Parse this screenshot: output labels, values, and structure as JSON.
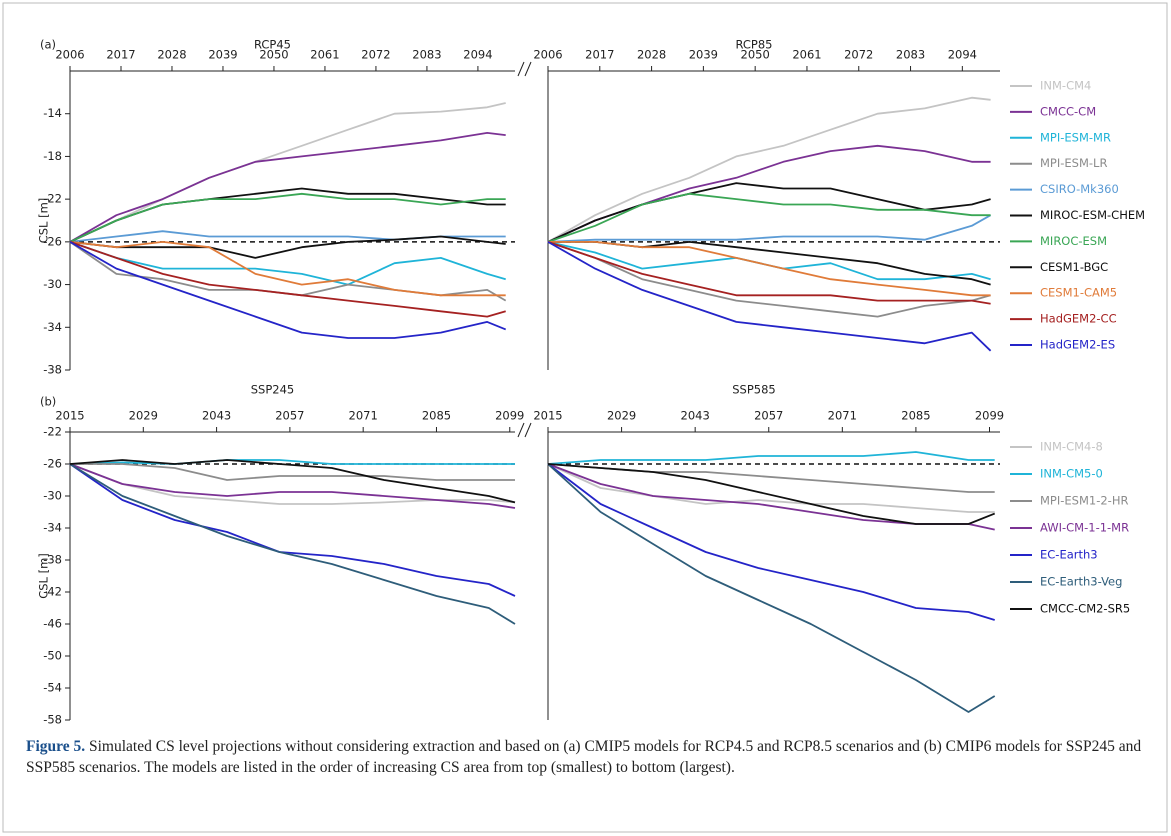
{
  "chart_data": [
    {
      "type": "line",
      "panel_label": "(a)",
      "title": "RCP45",
      "ylabel": "CSL [m]",
      "x": [
        2006,
        2016,
        2026,
        2036,
        2046,
        2056,
        2066,
        2076,
        2086,
        2096,
        2100
      ],
      "xlim": [
        2006,
        2102
      ],
      "xticks": [
        2006,
        2017,
        2028,
        2039,
        2050,
        2061,
        2072,
        2083,
        2094
      ],
      "ylim": [
        -38,
        -10
      ],
      "yticks": [
        -38,
        -34,
        -30,
        -26,
        -22,
        -18,
        -14
      ],
      "hline": -26,
      "series": [
        {
          "name": "INM-CM4",
          "color": "#c4c4c4",
          "values": [
            -26,
            -24,
            -22,
            -20,
            -18.5,
            -17,
            -15.5,
            -14,
            -13.8,
            -13.4,
            -13
          ]
        },
        {
          "name": "CMCC-CM",
          "color": "#7b3294",
          "values": [
            -26,
            -23.5,
            -22,
            -20,
            -18.5,
            -18,
            -17.5,
            -17,
            -16.5,
            -15.8,
            -16
          ]
        },
        {
          "name": "MPI-ESM-MR",
          "color": "#1fb4d8",
          "values": [
            -26,
            -27.5,
            -28.5,
            -28.5,
            -28.5,
            -29,
            -30,
            -28,
            -27.5,
            -29,
            -29.5
          ]
        },
        {
          "name": "MPI-ESM-LR",
          "color": "#8c8c8c",
          "values": [
            -26,
            -29,
            -29.5,
            -30.5,
            -30.5,
            -31,
            -30,
            -30.5,
            -31,
            -30.5,
            -31.5
          ]
        },
        {
          "name": "CSIRO-Mk360",
          "color": "#5b9bd5",
          "values": [
            -26,
            -25.5,
            -25,
            -25.5,
            -25.5,
            -25.5,
            -25.5,
            -25.8,
            -25.5,
            -25.5,
            -25.5
          ]
        },
        {
          "name": "MIROC-ESM-CHEM",
          "color": "#111111",
          "values": [
            -26,
            -24,
            -22.5,
            -22,
            -21.5,
            -21,
            -21.5,
            -21.5,
            -22,
            -22.5,
            -22.5
          ]
        },
        {
          "name": "MIROC-ESM",
          "color": "#3aa655",
          "values": [
            -26,
            -24,
            -22.5,
            -22,
            -22,
            -21.5,
            -22,
            -22,
            -22.5,
            -22,
            -22
          ]
        },
        {
          "name": "CESM1-BGC",
          "color": "#111111",
          "values": [
            -26,
            -26.5,
            -26.5,
            -26.5,
            -27.5,
            -26.5,
            -26,
            -25.8,
            -25.5,
            -26,
            -26.2
          ]
        },
        {
          "name": "CESM1-CAM5",
          "color": "#e07b39",
          "values": [
            -26,
            -26.5,
            -26,
            -26.5,
            -29,
            -30,
            -29.5,
            -30.5,
            -31,
            -31,
            -31
          ]
        },
        {
          "name": "HadGEM2-CC",
          "color": "#a52121",
          "values": [
            -26,
            -27.5,
            -29,
            -30,
            -30.5,
            -31,
            -31.5,
            -32,
            -32.5,
            -33,
            -32.5
          ]
        },
        {
          "name": "HadGEM2-ES",
          "color": "#2424c8",
          "values": [
            -26,
            -28.5,
            -30,
            -31.5,
            -33,
            -34.5,
            -35,
            -35,
            -34.5,
            -33.5,
            -34.2
          ]
        }
      ]
    },
    {
      "type": "line",
      "title": "RCP85",
      "legend": "right",
      "x": [
        2006,
        2016,
        2026,
        2036,
        2046,
        2056,
        2066,
        2076,
        2086,
        2096,
        2100
      ],
      "xlim": [
        2006,
        2102
      ],
      "xticks": [
        2006,
        2017,
        2028,
        2039,
        2050,
        2061,
        2072,
        2083,
        2094
      ],
      "ylim": [
        -38,
        -10
      ],
      "hline": -26,
      "series": [
        {
          "name": "INM-CM4",
          "color": "#c4c4c4",
          "values": [
            -26,
            -23.5,
            -21.5,
            -20,
            -18,
            -17,
            -15.5,
            -14,
            -13.5,
            -12.5,
            -12.7
          ]
        },
        {
          "name": "CMCC-CM",
          "color": "#7b3294",
          "values": [
            -26,
            -24,
            -22.5,
            -21,
            -20,
            -18.5,
            -17.5,
            -17,
            -17.5,
            -18.5,
            -18.5
          ]
        },
        {
          "name": "MPI-ESM-MR",
          "color": "#1fb4d8",
          "values": [
            -26,
            -27,
            -28.5,
            -28,
            -27.5,
            -28.5,
            -28,
            -29.5,
            -29.5,
            -29,
            -29.5
          ]
        },
        {
          "name": "MPI-ESM-LR",
          "color": "#8c8c8c",
          "values": [
            -26,
            -27.5,
            -29.5,
            -30.5,
            -31.5,
            -32,
            -32.5,
            -33,
            -32,
            -31.5,
            -31
          ]
        },
        {
          "name": "CSIRO-Mk360",
          "color": "#5b9bd5",
          "values": [
            -26,
            -25.8,
            -25.8,
            -25.8,
            -25.8,
            -25.5,
            -25.5,
            -25.5,
            -25.8,
            -24.5,
            -23.5
          ]
        },
        {
          "name": "MIROC-ESM-CHEM",
          "color": "#111111",
          "values": [
            -26,
            -24,
            -22.5,
            -21.5,
            -20.5,
            -21,
            -21,
            -22,
            -23,
            -22.5,
            -22
          ]
        },
        {
          "name": "MIROC-ESM",
          "color": "#3aa655",
          "values": [
            -26,
            -24.5,
            -22.5,
            -21.5,
            -22,
            -22.5,
            -22.5,
            -23,
            -23,
            -23.5,
            -23.5
          ]
        },
        {
          "name": "CESM1-BGC",
          "color": "#111111",
          "values": [
            -26,
            -26,
            -26.5,
            -26,
            -26.5,
            -27,
            -27.5,
            -28,
            -29,
            -29.5,
            -30
          ]
        },
        {
          "name": "CESM1-CAM5",
          "color": "#e07b39",
          "values": [
            -26,
            -26,
            -26.5,
            -26.5,
            -27.5,
            -28.5,
            -29.5,
            -30,
            -30.5,
            -31,
            -31
          ]
        },
        {
          "name": "HadGEM2-CC",
          "color": "#a52121",
          "values": [
            -26,
            -27.5,
            -29,
            -30,
            -31,
            -31,
            -31,
            -31.5,
            -31.5,
            -31.5,
            -31.8
          ]
        },
        {
          "name": "HadGEM2-ES",
          "color": "#2424c8",
          "values": [
            -26,
            -28.5,
            -30.5,
            -32,
            -33.5,
            -34,
            -34.5,
            -35,
            -35.5,
            -34.5,
            -36.2
          ]
        }
      ]
    },
    {
      "type": "line",
      "panel_label": "(b)",
      "title": "SSP245",
      "ylabel": "CSL [m]",
      "x": [
        2015,
        2025,
        2035,
        2045,
        2055,
        2065,
        2075,
        2085,
        2095,
        2100
      ],
      "xlim": [
        2015,
        2100
      ],
      "xticks": [
        2015,
        2029,
        2043,
        2057,
        2071,
        2085,
        2099
      ],
      "ylim": [
        -58,
        -22
      ],
      "yticks": [
        -58,
        -54,
        -50,
        -46,
        -42,
        -38,
        -34,
        -30,
        -26,
        -22
      ],
      "hline": -26,
      "series": [
        {
          "name": "INM-CM4-8",
          "color": "#c4c4c4",
          "values": [
            -26,
            -28.5,
            -30,
            -30.5,
            -31,
            -31,
            -30.8,
            -30.5,
            -30.5,
            -30.8
          ]
        },
        {
          "name": "INM-CM5-0",
          "color": "#1fb4d8",
          "values": [
            -26,
            -25.8,
            -26,
            -25.5,
            -25.5,
            -26,
            -26,
            -26,
            -26,
            -26
          ]
        },
        {
          "name": "MPI-ESM1-2-HR",
          "color": "#8c8c8c",
          "values": [
            -26,
            -26,
            -26.5,
            -28,
            -27.5,
            -27.5,
            -27.5,
            -28,
            -28,
            -28
          ]
        },
        {
          "name": "AWI-CM-1-1-MR",
          "color": "#7b3294",
          "values": [
            -26,
            -28.5,
            -29.5,
            -30,
            -29.5,
            -29.5,
            -30,
            -30.5,
            -31,
            -31.5
          ]
        },
        {
          "name": "EC-Earth3",
          "color": "#2424c8",
          "values": [
            -26,
            -30.5,
            -33,
            -34.5,
            -37,
            -37.5,
            -38.5,
            -40,
            -41,
            -42.5
          ]
        },
        {
          "name": "EC-Earth3-Veg",
          "color": "#2e5d7a",
          "values": [
            -26,
            -30,
            -32.5,
            -35,
            -37,
            -38.5,
            -40.5,
            -42.5,
            -44,
            -46
          ]
        },
        {
          "name": "CMCC-CM2-SR5",
          "color": "#111111",
          "values": [
            -26,
            -25.5,
            -26,
            -25.5,
            -26,
            -26.5,
            -28,
            -29,
            -30,
            -30.8
          ]
        }
      ]
    },
    {
      "type": "line",
      "title": "SSP585",
      "legend": "right",
      "x": [
        2015,
        2025,
        2035,
        2045,
        2055,
        2065,
        2075,
        2085,
        2095,
        2100
      ],
      "xlim": [
        2015,
        2101
      ],
      "xticks": [
        2015,
        2029,
        2043,
        2057,
        2071,
        2085,
        2099
      ],
      "ylim": [
        -58,
        -22
      ],
      "hline": -26,
      "series": [
        {
          "name": "INM-CM4-8",
          "color": "#c4c4c4",
          "values": [
            -26,
            -29,
            -30,
            -31,
            -30.5,
            -31,
            -31,
            -31.5,
            -32,
            -32
          ]
        },
        {
          "name": "INM-CM5-0",
          "color": "#1fb4d8",
          "values": [
            -26,
            -25.5,
            -25.5,
            -25.5,
            -25,
            -25,
            -25,
            -24.5,
            -25.5,
            -25.5
          ]
        },
        {
          "name": "MPI-ESM1-2-HR",
          "color": "#8c8c8c",
          "values": [
            -26,
            -26.5,
            -27,
            -27,
            -27.5,
            -28,
            -28.5,
            -29,
            -29.5,
            -29.5
          ]
        },
        {
          "name": "AWI-CM-1-1-MR",
          "color": "#7b3294",
          "values": [
            -26,
            -28.5,
            -30,
            -30.5,
            -31,
            -32,
            -33,
            -33.5,
            -33.5,
            -34.2
          ]
        },
        {
          "name": "EC-Earth3",
          "color": "#2424c8",
          "values": [
            -26,
            -31,
            -34,
            -37,
            -39,
            -40.5,
            -42,
            -44,
            -44.5,
            -45.5
          ]
        },
        {
          "name": "EC-Earth3-Veg",
          "color": "#2e5d7a",
          "values": [
            -26,
            -32,
            -36,
            -40,
            -43,
            -46,
            -49.5,
            -53,
            -57,
            -55
          ]
        },
        {
          "name": "CMCC-CM2-SR5",
          "color": "#111111",
          "values": [
            -26,
            -26.5,
            -27,
            -28,
            -29.5,
            -31,
            -32.5,
            -33.5,
            -33.5,
            -32.2
          ]
        }
      ]
    }
  ],
  "caption": {
    "label": "Figure 5.",
    "text": "Simulated CS level projections without considering extraction and based on (a) CMIP5 models for RCP4.5 and RCP8.5 scenarios and (b) CMIP6 models for SSP245 and SSP585 scenarios. The models are listed in the order of increasing CS area from top (smallest) to bottom (largest)."
  }
}
